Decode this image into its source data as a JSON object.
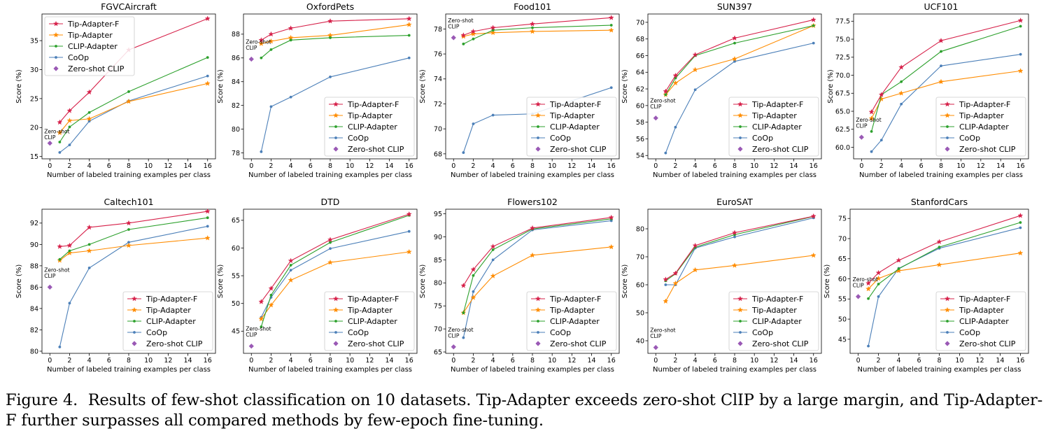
{
  "figure": {
    "caption_label": "Figure 4.",
    "caption_text": "Results of few-shot classification on 10 datasets. Tip-Adapter exceeds zero-shot ClIP by a large margin, and Tip-Adapter-F further surpasses all compared methods by few-epoch fine-tuning."
  },
  "colors": {
    "Tip-Adapter-F": "#d62049",
    "Tip-Adapter": "#ff8c00",
    "CLIP-Adapter": "#2ca02c",
    "CoOp": "#4b7fb8",
    "Zero-shot CLIP": "#9a59b5"
  },
  "chart_data": [
    {
      "type": "line",
      "title": "FGVCAircraft",
      "xlabel": "Number of labeled training examples per class",
      "ylabel": "Score (%)",
      "xlim": [
        -0.8,
        16.8
      ],
      "ylim": [
        14.6,
        39.6
      ],
      "xticks": [
        0,
        2,
        4,
        6,
        8,
        10,
        12,
        14,
        16
      ],
      "yticks": [
        15,
        20,
        25,
        30,
        35
      ],
      "legend": "upper-left",
      "zero_shot_label": "Zero-shot\nCLIP",
      "zero_shot_label_pos": "left",
      "series": [
        {
          "name": "Tip-Adapter-F",
          "x": [
            1,
            2,
            4,
            8,
            16
          ],
          "y": [
            20.9,
            22.9,
            26.1,
            33.4,
            38.8
          ]
        },
        {
          "name": "Tip-Adapter",
          "x": [
            1,
            2,
            4,
            8,
            16
          ],
          "y": [
            19.1,
            21.2,
            21.5,
            24.5,
            27.6
          ]
        },
        {
          "name": "CLIP-Adapter",
          "x": [
            1,
            2,
            4,
            8,
            16
          ],
          "y": [
            17.5,
            20.1,
            22.6,
            26.2,
            32.1
          ]
        },
        {
          "name": "CoOp",
          "x": [
            1,
            2,
            4,
            8,
            16
          ],
          "y": [
            15.7,
            17.0,
            21.1,
            24.6,
            28.9
          ]
        }
      ],
      "zero_shot": {
        "name": "Zero-shot CLIP",
        "x": 0,
        "y": 17.3
      }
    },
    {
      "type": "line",
      "title": "OxfordPets",
      "xlabel": "Number of labeled training examples per class",
      "ylabel": "Score (%)",
      "xlim": [
        -0.8,
        16.8
      ],
      "ylim": [
        77.5,
        89.7
      ],
      "xticks": [
        0,
        2,
        4,
        6,
        8,
        10,
        12,
        14,
        16
      ],
      "yticks": [
        78,
        80,
        82,
        84,
        86,
        88
      ],
      "legend": "lower-right",
      "zero_shot_label": "Zero-shot\nCLIP",
      "zero_shot_label_pos": "above",
      "series": [
        {
          "name": "Tip-Adapter-F",
          "x": [
            1,
            2,
            4,
            8,
            16
          ],
          "y": [
            87.5,
            88.0,
            88.5,
            89.1,
            89.3
          ]
        },
        {
          "name": "Tip-Adapter",
          "x": [
            1,
            2,
            4,
            8,
            16
          ],
          "y": [
            87.2,
            87.4,
            87.7,
            87.9,
            88.8
          ]
        },
        {
          "name": "CLIP-Adapter",
          "x": [
            1,
            2,
            4,
            8,
            16
          ],
          "y": [
            86.0,
            86.7,
            87.5,
            87.7,
            87.9
          ]
        },
        {
          "name": "CoOp",
          "x": [
            1,
            2,
            4,
            8,
            16
          ],
          "y": [
            78.1,
            81.9,
            82.7,
            84.4,
            86.0
          ]
        }
      ],
      "zero_shot": {
        "name": "Zero-shot CLIP",
        "x": 0,
        "y": 85.9
      }
    },
    {
      "type": "line",
      "title": "Food101",
      "xlabel": "Number of labeled training examples per class",
      "ylabel": "Score (%)",
      "xlim": [
        -0.8,
        16.8
      ],
      "ylim": [
        67.6,
        79.2
      ],
      "xticks": [
        0,
        2,
        4,
        6,
        8,
        10,
        12,
        14,
        16
      ],
      "yticks": [
        68,
        70,
        72,
        74,
        76,
        78
      ],
      "legend": "lower-right",
      "zero_shot_label": "Zero-shot\nCLIP",
      "zero_shot_label_pos": "above",
      "series": [
        {
          "name": "Tip-Adapter-F",
          "x": [
            1,
            2,
            4,
            8,
            16
          ],
          "y": [
            77.5,
            77.8,
            78.1,
            78.4,
            78.9
          ]
        },
        {
          "name": "Tip-Adapter",
          "x": [
            1,
            2,
            4,
            8,
            16
          ],
          "y": [
            77.4,
            77.6,
            77.7,
            77.8,
            77.9
          ]
        },
        {
          "name": "CLIP-Adapter",
          "x": [
            1,
            2,
            4,
            8,
            16
          ],
          "y": [
            76.8,
            77.2,
            77.9,
            78.1,
            78.3
          ]
        },
        {
          "name": "CoOp",
          "x": [
            1,
            2,
            4,
            8,
            16
          ],
          "y": [
            68.1,
            70.4,
            71.1,
            71.2,
            73.3
          ]
        }
      ],
      "zero_shot": {
        "name": "Zero-shot CLIP",
        "x": 0,
        "y": 77.3
      }
    },
    {
      "type": "line",
      "title": "SUN397",
      "xlabel": "Number of labeled training examples per class",
      "ylabel": "Score (%)",
      "xlim": [
        -0.8,
        16.8
      ],
      "ylim": [
        53.6,
        71.0
      ],
      "xticks": [
        0,
        2,
        4,
        6,
        8,
        10,
        12,
        14,
        16
      ],
      "yticks": [
        54,
        56,
        58,
        60,
        62,
        64,
        66,
        68,
        70
      ],
      "legend": "lower-right",
      "zero_shot_label": "Zero-shot\nCLIP",
      "zero_shot_label_pos": "above",
      "series": [
        {
          "name": "Tip-Adapter-F",
          "x": [
            1,
            2,
            4,
            8,
            16
          ],
          "y": [
            61.7,
            63.6,
            66.1,
            68.1,
            70.3
          ]
        },
        {
          "name": "Tip-Adapter",
          "x": [
            1,
            2,
            4,
            8,
            16
          ],
          "y": [
            61.3,
            62.7,
            64.3,
            65.6,
            69.6
          ]
        },
        {
          "name": "CLIP-Adapter",
          "x": [
            1,
            2,
            4,
            8,
            16
          ],
          "y": [
            61.3,
            63.3,
            66.0,
            67.5,
            69.6
          ]
        },
        {
          "name": "CoOp",
          "x": [
            1,
            2,
            4,
            8,
            16
          ],
          "y": [
            54.3,
            57.4,
            61.9,
            65.3,
            67.5
          ]
        }
      ],
      "zero_shot": {
        "name": "Zero-shot CLIP",
        "x": 0,
        "y": 58.5
      }
    },
    {
      "type": "line",
      "title": "UCF101",
      "xlabel": "Number of labeled training examples per class",
      "ylabel": "Score (%)",
      "xlim": [
        -0.8,
        16.8
      ],
      "ylim": [
        58.4,
        78.5
      ],
      "xticks": [
        0,
        2,
        4,
        6,
        8,
        10,
        12,
        14,
        16
      ],
      "yticks": [
        60.0,
        62.5,
        65.0,
        67.5,
        70.0,
        72.5,
        75.0,
        77.5
      ],
      "legend": "lower-right",
      "zero_shot_label": "Zero-shot\nCLIP",
      "zero_shot_label_pos": "above",
      "series": [
        {
          "name": "Tip-Adapter-F",
          "x": [
            1,
            2,
            4,
            8,
            16
          ],
          "y": [
            64.9,
            67.3,
            71.1,
            74.8,
            77.6
          ]
        },
        {
          "name": "Tip-Adapter",
          "x": [
            1,
            2,
            4,
            8,
            16
          ],
          "y": [
            64.0,
            66.7,
            67.5,
            69.1,
            70.6
          ]
        },
        {
          "name": "CLIP-Adapter",
          "x": [
            1,
            2,
            4,
            8,
            16
          ],
          "y": [
            62.2,
            67.3,
            69.1,
            73.3,
            76.8
          ]
        },
        {
          "name": "CoOp",
          "x": [
            1,
            2,
            4,
            8,
            16
          ],
          "y": [
            59.4,
            61.0,
            66.0,
            71.3,
            72.9
          ]
        }
      ],
      "zero_shot": {
        "name": "Zero-shot CLIP",
        "x": 0,
        "y": 61.4
      }
    },
    {
      "type": "line",
      "title": "Caltech101",
      "xlabel": "Number of labeled training examples per class",
      "ylabel": "Score (%)",
      "xlim": [
        -0.8,
        16.8
      ],
      "ylim": [
        79.8,
        93.3
      ],
      "xticks": [
        0,
        2,
        4,
        6,
        8,
        10,
        12,
        14,
        16
      ],
      "yticks": [
        80,
        82,
        84,
        86,
        88,
        90,
        92
      ],
      "legend": "lower-right",
      "zero_shot_label": "Zero-shot\nCLIP",
      "zero_shot_label_pos": "above",
      "series": [
        {
          "name": "Tip-Adapter-F",
          "x": [
            1,
            2,
            4,
            8,
            16
          ],
          "y": [
            89.8,
            89.9,
            91.6,
            92.0,
            93.1
          ]
        },
        {
          "name": "Tip-Adapter",
          "x": [
            1,
            2,
            4,
            8,
            16
          ],
          "y": [
            88.5,
            89.2,
            89.4,
            89.9,
            90.6
          ]
        },
        {
          "name": "CLIP-Adapter",
          "x": [
            1,
            2,
            4,
            8,
            16
          ],
          "y": [
            88.6,
            89.4,
            90.0,
            91.4,
            92.5
          ]
        },
        {
          "name": "CoOp",
          "x": [
            1,
            2,
            4,
            8,
            16
          ],
          "y": [
            80.4,
            84.5,
            87.8,
            90.2,
            91.7
          ]
        }
      ],
      "zero_shot": {
        "name": "Zero-shot CLIP",
        "x": 0,
        "y": 86.0
      }
    },
    {
      "type": "line",
      "title": "DTD",
      "xlabel": "Number of labeled training examples per class",
      "ylabel": "Score (%)",
      "xlim": [
        -0.8,
        16.8
      ],
      "ylim": [
        41.0,
        67.0
      ],
      "xticks": [
        0,
        2,
        4,
        6,
        8,
        10,
        12,
        14,
        16
      ],
      "yticks": [
        45,
        50,
        55,
        60,
        65
      ],
      "legend": "lower-right",
      "zero_shot_label": "Zero-shot\nCLIP",
      "zero_shot_label_pos": "above",
      "series": [
        {
          "name": "Tip-Adapter-F",
          "x": [
            1,
            2,
            4,
            8,
            16
          ],
          "y": [
            50.3,
            52.7,
            57.7,
            61.5,
            66.1
          ]
        },
        {
          "name": "Tip-Adapter",
          "x": [
            1,
            2,
            4,
            8,
            16
          ],
          "y": [
            47.2,
            49.7,
            54.2,
            57.4,
            59.3
          ]
        },
        {
          "name": "CLIP-Adapter",
          "x": [
            1,
            2,
            4,
            8,
            16
          ],
          "y": [
            45.8,
            51.5,
            56.9,
            61.0,
            65.9
          ]
        },
        {
          "name": "CoOp",
          "x": [
            1,
            2,
            4,
            8,
            16
          ],
          "y": [
            47.5,
            51.1,
            56.0,
            59.9,
            63.0
          ]
        }
      ],
      "zero_shot": {
        "name": "Zero-shot CLIP",
        "x": 0,
        "y": 42.3
      }
    },
    {
      "type": "line",
      "title": "Flowers102",
      "xlabel": "Number of labeled training examples per class",
      "ylabel": "Score (%)",
      "xlim": [
        -0.8,
        16.8
      ],
      "ylim": [
        64.7,
        96.0
      ],
      "xticks": [
        0,
        2,
        4,
        6,
        8,
        10,
        12,
        14,
        16
      ],
      "yticks": [
        65,
        70,
        75,
        80,
        85,
        90,
        95
      ],
      "legend": "lower-right",
      "zero_shot_label": "Zero-shot\nCLIP",
      "zero_shot_label_pos": "above",
      "series": [
        {
          "name": "Tip-Adapter-F",
          "x": [
            1,
            2,
            4,
            8,
            16
          ],
          "y": [
            79.4,
            82.9,
            87.9,
            91.9,
            94.2
          ]
        },
        {
          "name": "Tip-Adapter",
          "x": [
            1,
            2,
            4,
            8,
            16
          ],
          "y": [
            73.5,
            76.8,
            81.5,
            86.0,
            87.8
          ]
        },
        {
          "name": "CLIP-Adapter",
          "x": [
            1,
            2,
            4,
            8,
            16
          ],
          "y": [
            73.5,
            81.6,
            87.2,
            91.7,
            93.9
          ]
        },
        {
          "name": "CoOp",
          "x": [
            1,
            2,
            4,
            8,
            16
          ],
          "y": [
            68.1,
            78.1,
            85.0,
            91.5,
            93.5
          ]
        }
      ],
      "zero_shot": {
        "name": "Zero-shot CLIP",
        "x": 0,
        "y": 66.1
      }
    },
    {
      "type": "line",
      "title": "EuroSAT",
      "xlabel": "Number of labeled training examples per class",
      "ylabel": "Score (%)",
      "xlim": [
        -0.8,
        16.8
      ],
      "ylim": [
        35.5,
        87.0
      ],
      "xticks": [
        0,
        2,
        4,
        6,
        8,
        10,
        12,
        14,
        16
      ],
      "yticks": [
        40,
        50,
        60,
        70,
        80
      ],
      "legend": "lower-right",
      "zero_shot_label": "Zero-shot\nCLIP",
      "zero_shot_label_pos": "above",
      "series": [
        {
          "name": "Tip-Adapter-F",
          "x": [
            1,
            2,
            4,
            8,
            16
          ],
          "y": [
            61.9,
            64.1,
            74.0,
            78.6,
            84.5
          ]
        },
        {
          "name": "Tip-Adapter",
          "x": [
            1,
            2,
            4,
            8,
            16
          ],
          "y": [
            54.1,
            60.5,
            65.3,
            66.9,
            70.5
          ]
        },
        {
          "name": "CLIP-Adapter",
          "x": [
            1,
            2,
            4,
            8,
            16
          ],
          "y": [
            61.4,
            63.9,
            73.4,
            77.9,
            84.4
          ]
        },
        {
          "name": "CoOp",
          "x": [
            1,
            2,
            4,
            8,
            16
          ],
          "y": [
            60.0,
            60.0,
            73.1,
            77.1,
            83.9
          ]
        }
      ],
      "zero_shot": {
        "name": "Zero-shot CLIP",
        "x": 0,
        "y": 37.6
      }
    },
    {
      "type": "line",
      "title": "StanfordCars",
      "xlabel": "Number of labeled training examples per class",
      "ylabel": "Score (%)",
      "xlim": [
        -0.8,
        16.8
      ],
      "ylim": [
        41.5,
        77.3
      ],
      "xticks": [
        0,
        2,
        4,
        6,
        8,
        10,
        12,
        14,
        16
      ],
      "yticks": [
        45,
        50,
        55,
        60,
        65,
        70,
        75
      ],
      "legend": "lower-right",
      "zero_shot_label": "Zero-shot\nCLIP",
      "zero_shot_label_pos": "above",
      "series": [
        {
          "name": "Tip-Adapter-F",
          "x": [
            1,
            2,
            4,
            8,
            16
          ],
          "y": [
            58.9,
            61.5,
            64.6,
            69.2,
            75.7
          ]
        },
        {
          "name": "Tip-Adapter",
          "x": [
            1,
            2,
            4,
            8,
            16
          ],
          "y": [
            57.5,
            60.1,
            62.0,
            63.5,
            66.4
          ]
        },
        {
          "name": "CLIP-Adapter",
          "x": [
            1,
            2,
            4,
            8,
            16
          ],
          "y": [
            55.1,
            58.7,
            62.5,
            67.9,
            74.0
          ]
        },
        {
          "name": "CoOp",
          "x": [
            1,
            2,
            4,
            8,
            16
          ],
          "y": [
            43.3,
            55.6,
            62.6,
            67.6,
            72.7
          ]
        }
      ],
      "zero_shot": {
        "name": "Zero-shot CLIP",
        "x": 0,
        "y": 55.6
      }
    }
  ]
}
